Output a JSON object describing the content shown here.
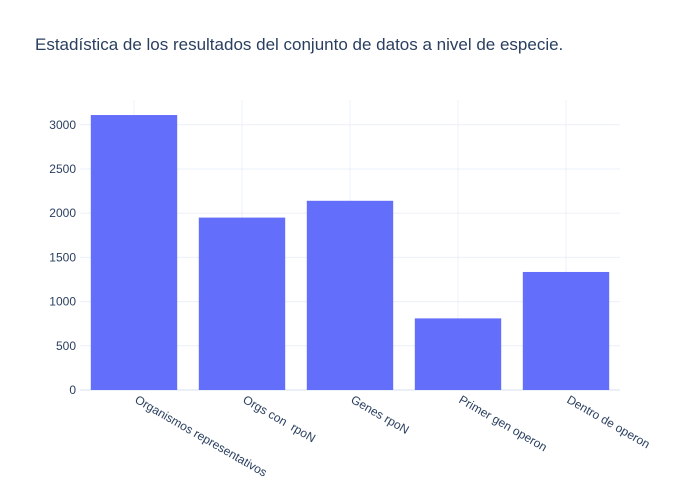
{
  "chart_data": {
    "type": "bar",
    "title": "Estadística de los resultados del conjunto de datos a nivel de especie.",
    "xlabel": "",
    "ylabel": "",
    "categories": [
      "Organismos representativos",
      "Orgs con  rpoN",
      "Genes rpoN",
      "Primer gen operon",
      "Dentro de operon"
    ],
    "values": [
      3110,
      1950,
      2140,
      810,
      1335
    ],
    "ylim": [
      0,
      3280
    ],
    "yticks": [
      0,
      500,
      1000,
      1500,
      2000,
      2500,
      3000
    ],
    "ytick_labels": [
      "0",
      "500",
      "1000",
      "1500",
      "2000",
      "2500",
      "3000"
    ],
    "grid": true,
    "legend": "none",
    "bar_color": "#636efa",
    "background": "#ffffff"
  }
}
